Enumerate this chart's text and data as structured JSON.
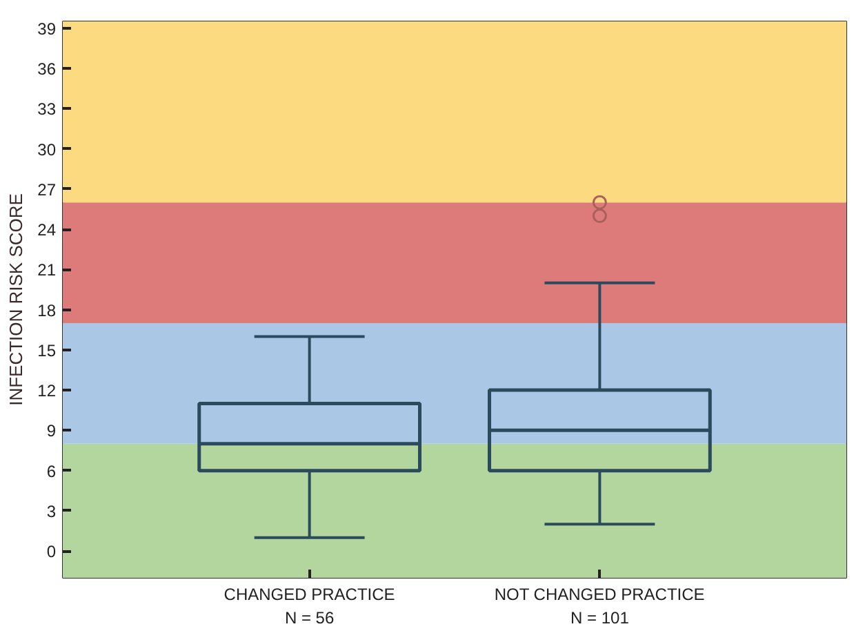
{
  "chart_data": {
    "type": "box",
    "ylabel": "INFECTION RISK SCORE",
    "categories": [
      "CHANGED PRACTICE\nN = 56",
      "NOT CHANGED PRACTICE\nN = 101"
    ],
    "boxes": [
      {
        "low": 1,
        "q1": 6,
        "median": 8,
        "q3": 11,
        "high": 16
      },
      {
        "low": 2,
        "q1": 6,
        "median": 9,
        "q3": 12,
        "high": 20,
        "outliers": [
          25,
          26
        ]
      }
    ],
    "color": "#2b4a5c",
    "ylim": [
      -2,
      39.5
    ],
    "yticks": [
      0,
      3,
      6,
      9,
      12,
      15,
      18,
      21,
      24,
      27,
      30,
      33,
      36,
      39
    ],
    "bands": [
      {
        "axis": "y",
        "from": -2,
        "to": 8,
        "color": "#b3d69e"
      },
      {
        "axis": "y",
        "from": 8,
        "to": 17,
        "color": "#aac8e6"
      },
      {
        "axis": "y",
        "from": 17,
        "to": 26,
        "color": "#dd7b7b"
      },
      {
        "axis": "y",
        "from": 26,
        "to": 39.5,
        "color": "#fcdb80"
      }
    ]
  }
}
